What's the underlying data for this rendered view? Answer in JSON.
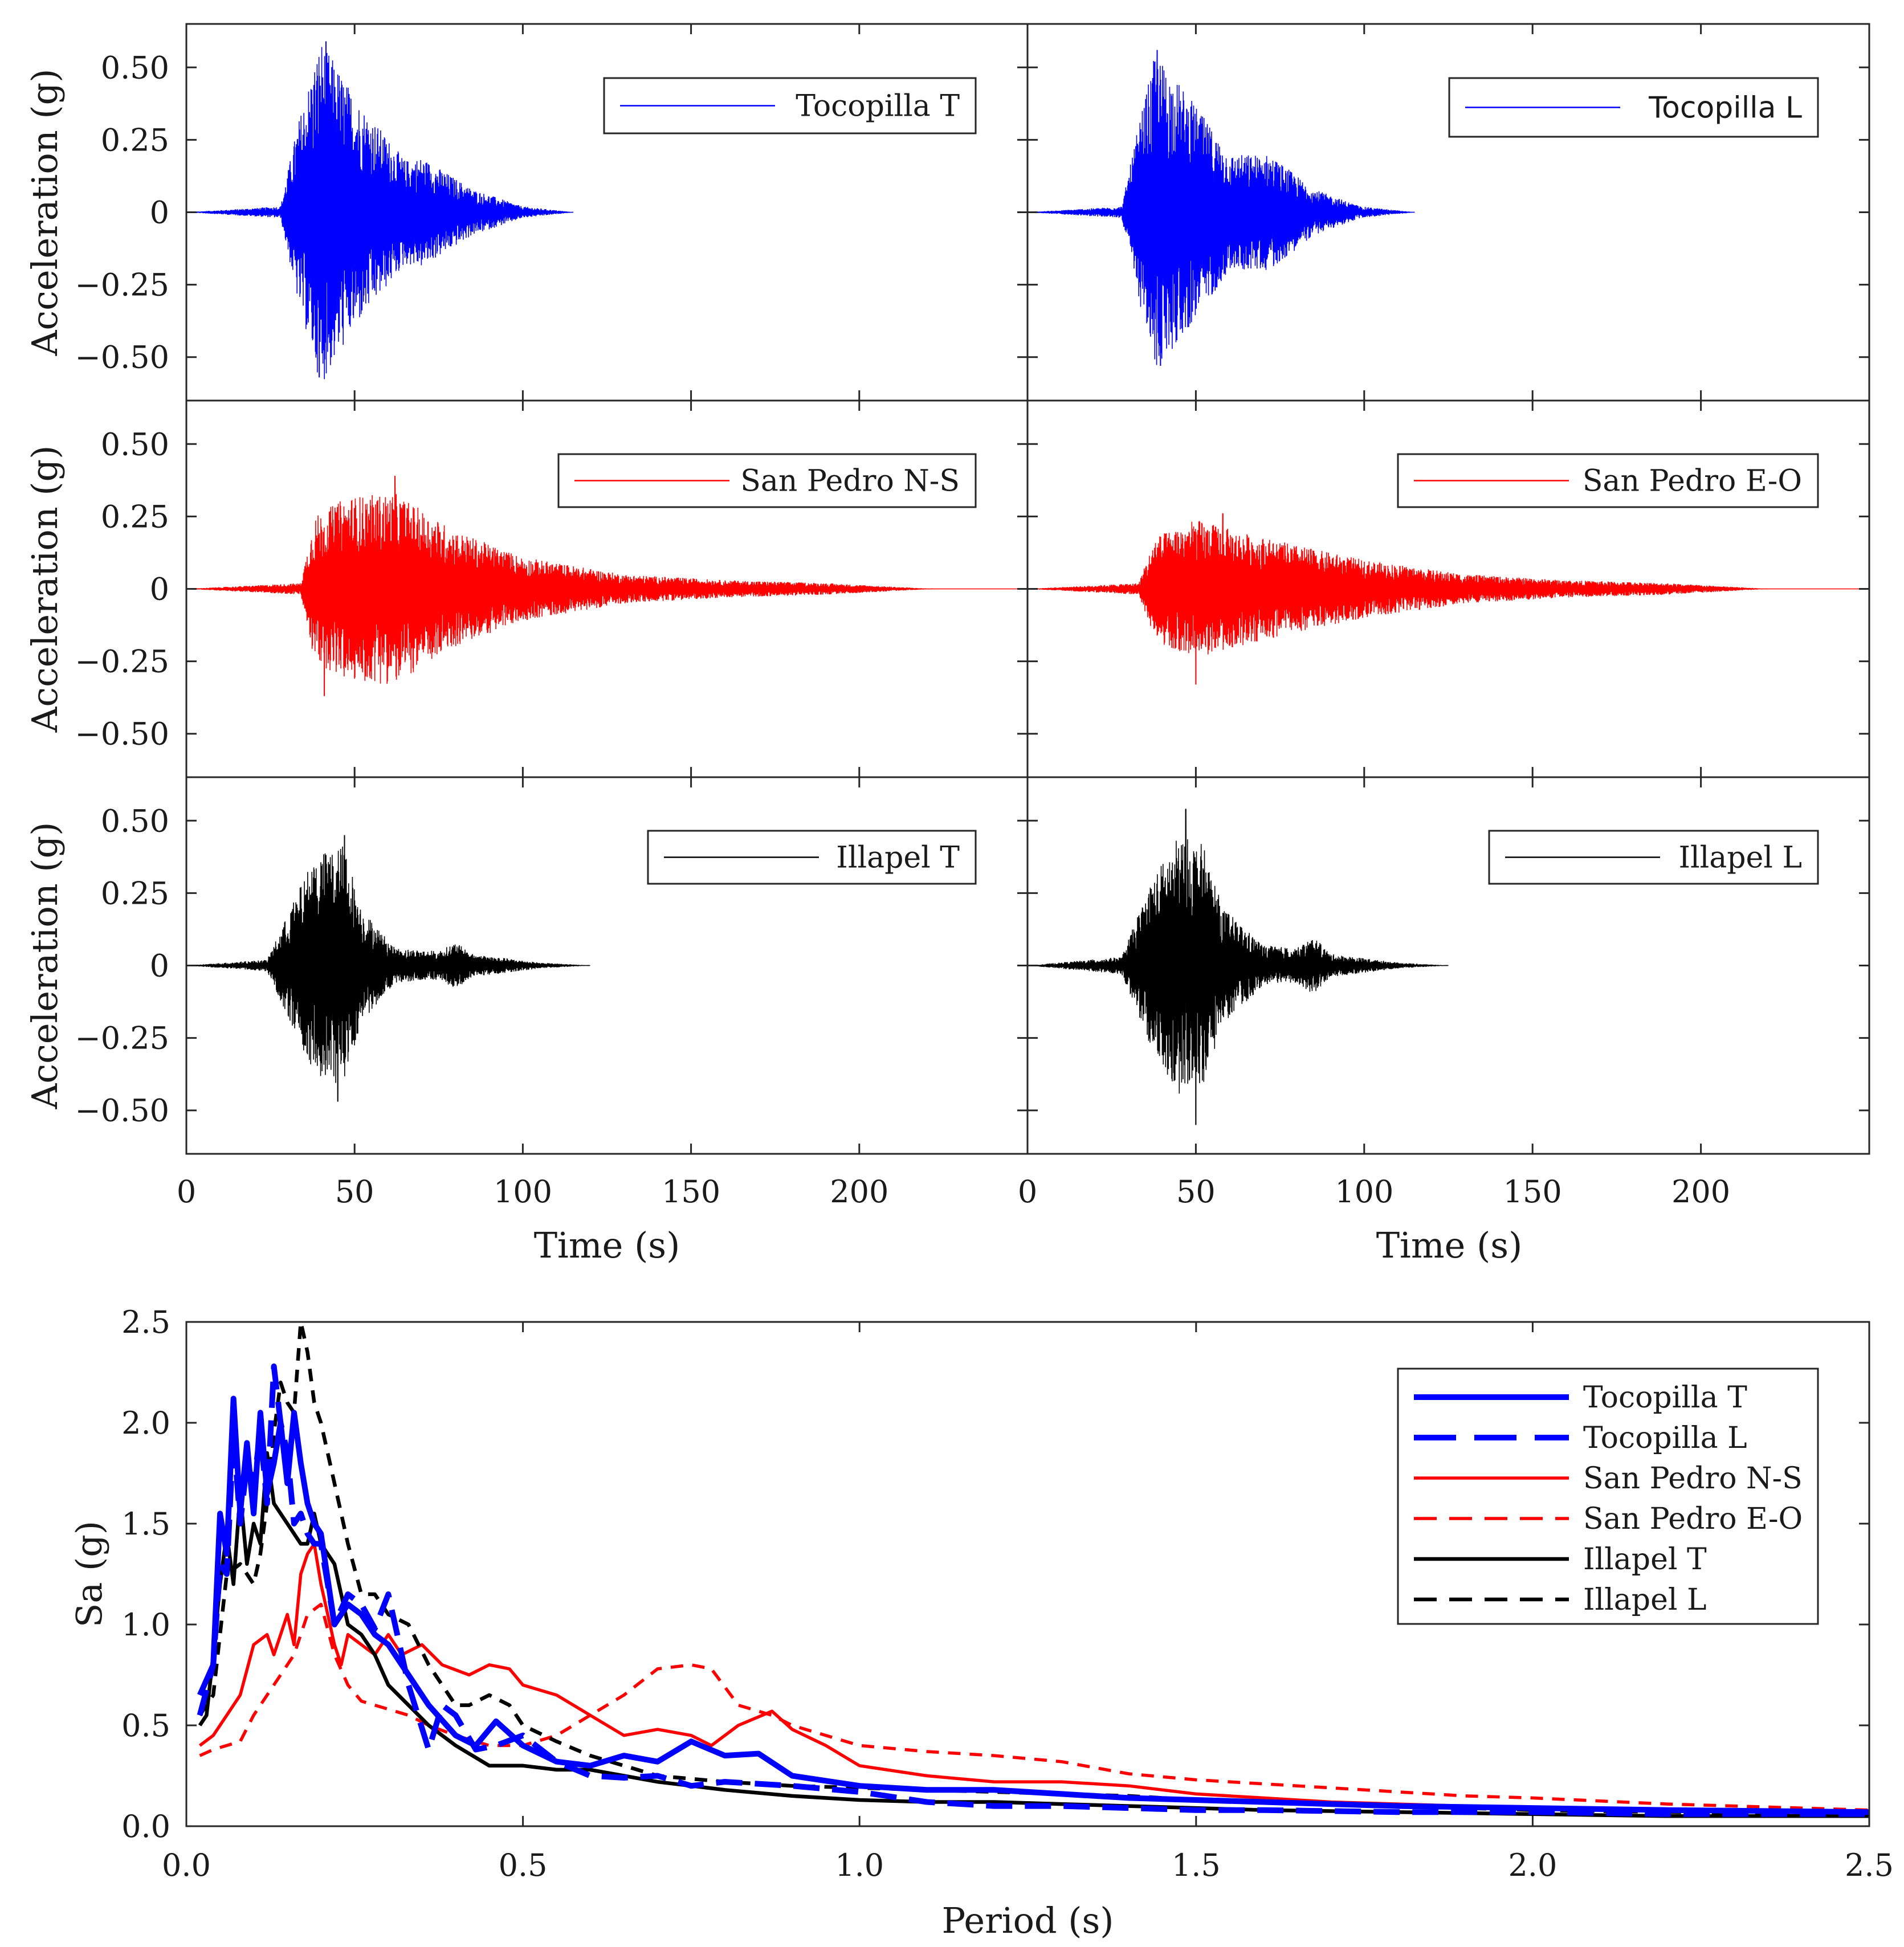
{
  "chart_data": [
    {
      "type": "line",
      "panel": "acceleration-time-histories",
      "xlabel": "Time (s)",
      "ylabel": "Acceleration (g)",
      "xlim": [
        0,
        250
      ],
      "ylim": [
        -0.65,
        0.65
      ],
      "xticks": [
        0,
        50,
        100,
        150,
        200
      ],
      "xtick_labels": [
        "0",
        "50",
        "100",
        "150",
        "200"
      ],
      "yticks": [
        0.5,
        0.25,
        0,
        -0.25,
        -0.5
      ],
      "ytick_labels": [
        "0.50",
        "0.25",
        "0",
        "−0.25",
        "−0.50"
      ],
      "grid": false,
      "legend_position": "top-right",
      "subplots": [
        {
          "name": "Tocopilla T",
          "color": "#0000ff",
          "end": 115,
          "onset": 28,
          "peak_time": 40,
          "decay": 26,
          "envelope": [
            [
              0,
              0
            ],
            [
              28,
              0.02
            ],
            [
              33,
              0.3
            ],
            [
              40,
              0.6
            ],
            [
              50,
              0.4
            ],
            [
              65,
              0.18
            ],
            [
              70,
              0.19
            ],
            [
              85,
              0.08
            ],
            [
              100,
              0.02
            ],
            [
              115,
              0
            ]
          ],
          "pga": 0.59,
          "pga_time": 41.5,
          "pgn": -0.57,
          "pgn_time": 39.5
        },
        {
          "name": "Tocopilla L",
          "color": "#0000ff",
          "end": 115,
          "onset": 28,
          "envelope": [
            [
              0,
              0
            ],
            [
              28,
              0.02
            ],
            [
              33,
              0.3
            ],
            [
              38,
              0.55
            ],
            [
              48,
              0.4
            ],
            [
              60,
              0.2
            ],
            [
              72,
              0.2
            ],
            [
              85,
              0.08
            ],
            [
              99,
              0.02
            ],
            [
              115,
              0
            ]
          ],
          "pga": 0.56,
          "pga_time": 38.5,
          "pgn": -0.53,
          "pgn_time": 39.5
        },
        {
          "name": "San Pedro N-S",
          "color": "#ff0000",
          "end": 250,
          "onset": 33,
          "envelope": [
            [
              0,
              0
            ],
            [
              34,
              0.02
            ],
            [
              38,
              0.25
            ],
            [
              48,
              0.32
            ],
            [
              62,
              0.33
            ],
            [
              80,
              0.2
            ],
            [
              100,
              0.11
            ],
            [
              130,
              0.05
            ],
            [
              160,
              0.03
            ],
            [
              190,
              0.02
            ],
            [
              222,
              0
            ],
            [
              250,
              0
            ]
          ],
          "pga": 0.39,
          "pga_time": 62,
          "pgn": -0.37,
          "pgn_time": 41
        },
        {
          "name": "San Pedro E-O",
          "color": "#ff0000",
          "end": 250,
          "onset": 33,
          "envelope": [
            [
              0,
              0
            ],
            [
              33,
              0.02
            ],
            [
              38,
              0.18
            ],
            [
              50,
              0.24
            ],
            [
              62,
              0.2
            ],
            [
              80,
              0.15
            ],
            [
              100,
              0.1
            ],
            [
              130,
              0.05
            ],
            [
              160,
              0.03
            ],
            [
              190,
              0.02
            ],
            [
              220,
              0
            ],
            [
              250,
              0
            ]
          ],
          "pga": 0.26,
          "pga_time": 58,
          "pgn": -0.33,
          "pgn_time": 50
        },
        {
          "name": "Illapel T",
          "color": "#000000",
          "end": 120,
          "onset": 24,
          "envelope": [
            [
              0,
              0
            ],
            [
              24,
              0.02
            ],
            [
              33,
              0.25
            ],
            [
              38,
              0.38
            ],
            [
              47,
              0.42
            ],
            [
              52,
              0.2
            ],
            [
              62,
              0.06
            ],
            [
              75,
              0.05
            ],
            [
              80,
              0.08
            ],
            [
              85,
              0.04
            ],
            [
              105,
              0.01
            ],
            [
              120,
              0
            ]
          ],
          "pga": 0.45,
          "pga_time": 47,
          "pgn": -0.47,
          "pgn_time": 45
        },
        {
          "name": "Illapel L",
          "color": "#000000",
          "end": 125,
          "onset": 28,
          "envelope": [
            [
              0,
              0
            ],
            [
              28,
              0.03
            ],
            [
              37,
              0.3
            ],
            [
              45,
              0.45
            ],
            [
              52,
              0.42
            ],
            [
              58,
              0.2
            ],
            [
              70,
              0.07
            ],
            [
              80,
              0.06
            ],
            [
              85,
              0.1
            ],
            [
              90,
              0.04
            ],
            [
              110,
              0.01
            ],
            [
              125,
              0
            ]
          ],
          "pga": 0.54,
          "pga_time": 47,
          "pgn": -0.55,
          "pgn_time": 50
        }
      ]
    },
    {
      "type": "line",
      "panel": "response-spectra",
      "xlabel": "Period (s)",
      "ylabel": "Sa (g)",
      "xlim": [
        0,
        2.5
      ],
      "ylim": [
        0,
        2.5
      ],
      "xticks": [
        0,
        0.5,
        1.0,
        1.5,
        2.0,
        2.5
      ],
      "xtick_labels": [
        "0.0",
        "0.5",
        "1.0",
        "1.5",
        "2.0",
        "2.5"
      ],
      "yticks": [
        0,
        0.5,
        1.0,
        1.5,
        2.0,
        2.5
      ],
      "ytick_labels": [
        "0.0",
        "0.5",
        "1.0",
        "1.5",
        "2.0",
        "2.5"
      ],
      "grid": false,
      "legend_position": "top-right",
      "series": [
        {
          "name": "Tocopilla T",
          "color": "#0000ff",
          "style": "solid",
          "width": "thick",
          "x": [
            0.02,
            0.04,
            0.05,
            0.06,
            0.07,
            0.08,
            0.09,
            0.1,
            0.11,
            0.12,
            0.13,
            0.14,
            0.15,
            0.16,
            0.17,
            0.18,
            0.19,
            0.2,
            0.22,
            0.24,
            0.26,
            0.28,
            0.3,
            0.33,
            0.36,
            0.4,
            0.43,
            0.46,
            0.5,
            0.55,
            0.6,
            0.65,
            0.7,
            0.75,
            0.8,
            0.85,
            0.9,
            1.0,
            1.1,
            1.2,
            1.3,
            1.4,
            1.5,
            1.6,
            1.7,
            1.8,
            2.0,
            2.2,
            2.5
          ],
          "y": [
            0.65,
            0.8,
            1.55,
            1.35,
            2.12,
            1.55,
            1.9,
            1.55,
            2.05,
            1.65,
            1.8,
            2.0,
            1.7,
            2.05,
            1.8,
            1.6,
            1.5,
            1.45,
            1.0,
            1.1,
            1.05,
            0.95,
            0.9,
            0.75,
            0.6,
            0.45,
            0.4,
            0.52,
            0.4,
            0.32,
            0.3,
            0.35,
            0.32,
            0.42,
            0.35,
            0.36,
            0.25,
            0.2,
            0.18,
            0.18,
            0.16,
            0.14,
            0.13,
            0.12,
            0.11,
            0.1,
            0.09,
            0.08,
            0.07
          ]
        },
        {
          "name": "Tocopilla L",
          "color": "#0000ff",
          "style": "dashed",
          "width": "thick",
          "x": [
            0.02,
            0.04,
            0.05,
            0.06,
            0.07,
            0.08,
            0.09,
            0.1,
            0.11,
            0.12,
            0.13,
            0.14,
            0.15,
            0.16,
            0.17,
            0.18,
            0.19,
            0.2,
            0.22,
            0.24,
            0.26,
            0.28,
            0.3,
            0.33,
            0.36,
            0.38,
            0.4,
            0.43,
            0.46,
            0.5,
            0.55,
            0.6,
            0.65,
            0.7,
            0.75,
            0.8,
            0.9,
            1.0,
            1.1,
            1.2,
            1.3,
            1.4,
            1.5,
            1.6,
            1.8,
            2.0,
            2.2,
            2.5
          ],
          "y": [
            0.55,
            0.8,
            1.3,
            1.25,
            1.95,
            1.5,
            1.8,
            1.7,
            1.95,
            1.6,
            2.28,
            2.0,
            1.85,
            1.5,
            1.55,
            1.45,
            1.4,
            1.4,
            1.0,
            1.15,
            1.1,
            0.98,
            1.15,
            0.7,
            0.38,
            0.6,
            0.55,
            0.38,
            0.4,
            0.45,
            0.32,
            0.25,
            0.24,
            0.25,
            0.2,
            0.22,
            0.2,
            0.17,
            0.12,
            0.1,
            0.1,
            0.09,
            0.08,
            0.08,
            0.07,
            0.07,
            0.06,
            0.06
          ]
        },
        {
          "name": "San Pedro N-S",
          "color": "#ff0000",
          "style": "solid",
          "width": "thin",
          "x": [
            0.02,
            0.04,
            0.06,
            0.08,
            0.1,
            0.12,
            0.13,
            0.14,
            0.15,
            0.16,
            0.17,
            0.18,
            0.19,
            0.2,
            0.21,
            0.22,
            0.23,
            0.24,
            0.26,
            0.28,
            0.3,
            0.32,
            0.35,
            0.38,
            0.42,
            0.45,
            0.48,
            0.5,
            0.55,
            0.6,
            0.65,
            0.7,
            0.75,
            0.78,
            0.82,
            0.87,
            0.9,
            0.95,
            1.0,
            1.1,
            1.2,
            1.3,
            1.4,
            1.5,
            1.6,
            1.7,
            1.8,
            2.0,
            2.2,
            2.5
          ],
          "y": [
            0.4,
            0.45,
            0.55,
            0.65,
            0.9,
            0.95,
            0.85,
            0.95,
            1.05,
            0.9,
            1.25,
            1.35,
            1.4,
            1.2,
            1.05,
            0.9,
            0.8,
            0.95,
            0.9,
            0.85,
            0.95,
            0.85,
            0.9,
            0.8,
            0.75,
            0.8,
            0.78,
            0.7,
            0.65,
            0.55,
            0.45,
            0.48,
            0.45,
            0.4,
            0.5,
            0.57,
            0.48,
            0.4,
            0.3,
            0.25,
            0.22,
            0.22,
            0.2,
            0.16,
            0.14,
            0.12,
            0.11,
            0.09,
            0.08,
            0.06
          ]
        },
        {
          "name": "San Pedro E-O",
          "color": "#ff0000",
          "style": "dashed",
          "width": "thin",
          "x": [
            0.02,
            0.04,
            0.06,
            0.08,
            0.1,
            0.12,
            0.14,
            0.16,
            0.18,
            0.2,
            0.22,
            0.24,
            0.26,
            0.28,
            0.3,
            0.33,
            0.36,
            0.4,
            0.45,
            0.5,
            0.55,
            0.6,
            0.65,
            0.7,
            0.75,
            0.78,
            0.82,
            0.87,
            0.9,
            1.0,
            1.1,
            1.2,
            1.3,
            1.4,
            1.5,
            1.6,
            1.7,
            1.8,
            1.9,
            2.0,
            2.2,
            2.5
          ],
          "y": [
            0.35,
            0.38,
            0.4,
            0.42,
            0.55,
            0.65,
            0.75,
            0.85,
            1.05,
            1.1,
            0.85,
            0.7,
            0.62,
            0.6,
            0.58,
            0.55,
            0.5,
            0.45,
            0.4,
            0.4,
            0.45,
            0.55,
            0.65,
            0.78,
            0.8,
            0.78,
            0.6,
            0.55,
            0.5,
            0.4,
            0.37,
            0.35,
            0.32,
            0.26,
            0.23,
            0.21,
            0.19,
            0.17,
            0.15,
            0.14,
            0.11,
            0.08
          ]
        },
        {
          "name": "Illapel T",
          "color": "#000000",
          "style": "solid",
          "width": "normal",
          "x": [
            0.02,
            0.03,
            0.04,
            0.05,
            0.06,
            0.07,
            0.08,
            0.09,
            0.1,
            0.11,
            0.12,
            0.13,
            0.14,
            0.15,
            0.16,
            0.17,
            0.18,
            0.19,
            0.2,
            0.22,
            0.24,
            0.26,
            0.28,
            0.3,
            0.33,
            0.36,
            0.4,
            0.45,
            0.5,
            0.55,
            0.6,
            0.65,
            0.7,
            0.75,
            0.8,
            0.9,
            1.0,
            1.1,
            1.2,
            1.3,
            1.4,
            1.5,
            1.6,
            1.8,
            2.0,
            2.2,
            2.5
          ],
          "y": [
            0.5,
            0.55,
            0.85,
            1.2,
            1.45,
            1.2,
            1.65,
            1.3,
            1.5,
            1.4,
            1.85,
            1.6,
            1.55,
            1.5,
            1.45,
            1.4,
            1.4,
            1.55,
            1.4,
            1.3,
            1.0,
            0.95,
            0.85,
            0.7,
            0.6,
            0.5,
            0.4,
            0.3,
            0.3,
            0.28,
            0.28,
            0.25,
            0.22,
            0.2,
            0.18,
            0.15,
            0.13,
            0.12,
            0.12,
            0.11,
            0.1,
            0.09,
            0.08,
            0.07,
            0.06,
            0.05,
            0.05
          ]
        },
        {
          "name": "Illapel L",
          "color": "#000000",
          "style": "dashed",
          "width": "normal",
          "x": [
            0.02,
            0.04,
            0.06,
            0.08,
            0.1,
            0.11,
            0.12,
            0.13,
            0.14,
            0.15,
            0.16,
            0.17,
            0.18,
            0.19,
            0.2,
            0.22,
            0.24,
            0.26,
            0.28,
            0.3,
            0.33,
            0.36,
            0.4,
            0.42,
            0.45,
            0.48,
            0.5,
            0.55,
            0.6,
            0.65,
            0.7,
            0.8,
            0.9,
            1.0,
            1.1,
            1.2,
            1.3,
            1.4,
            1.5,
            1.6,
            1.8,
            2.0,
            2.2,
            2.5
          ],
          "y": [
            0.55,
            0.65,
            1.25,
            1.3,
            1.2,
            1.35,
            1.6,
            1.95,
            2.2,
            2.1,
            2.05,
            2.5,
            2.35,
            2.1,
            2.0,
            1.7,
            1.4,
            1.15,
            1.15,
            1.05,
            1.0,
            0.8,
            0.6,
            0.6,
            0.65,
            0.6,
            0.5,
            0.42,
            0.35,
            0.3,
            0.25,
            0.22,
            0.2,
            0.19,
            0.18,
            0.17,
            0.16,
            0.15,
            0.13,
            0.12,
            0.1,
            0.08,
            0.07,
            0.06
          ]
        }
      ]
    }
  ]
}
